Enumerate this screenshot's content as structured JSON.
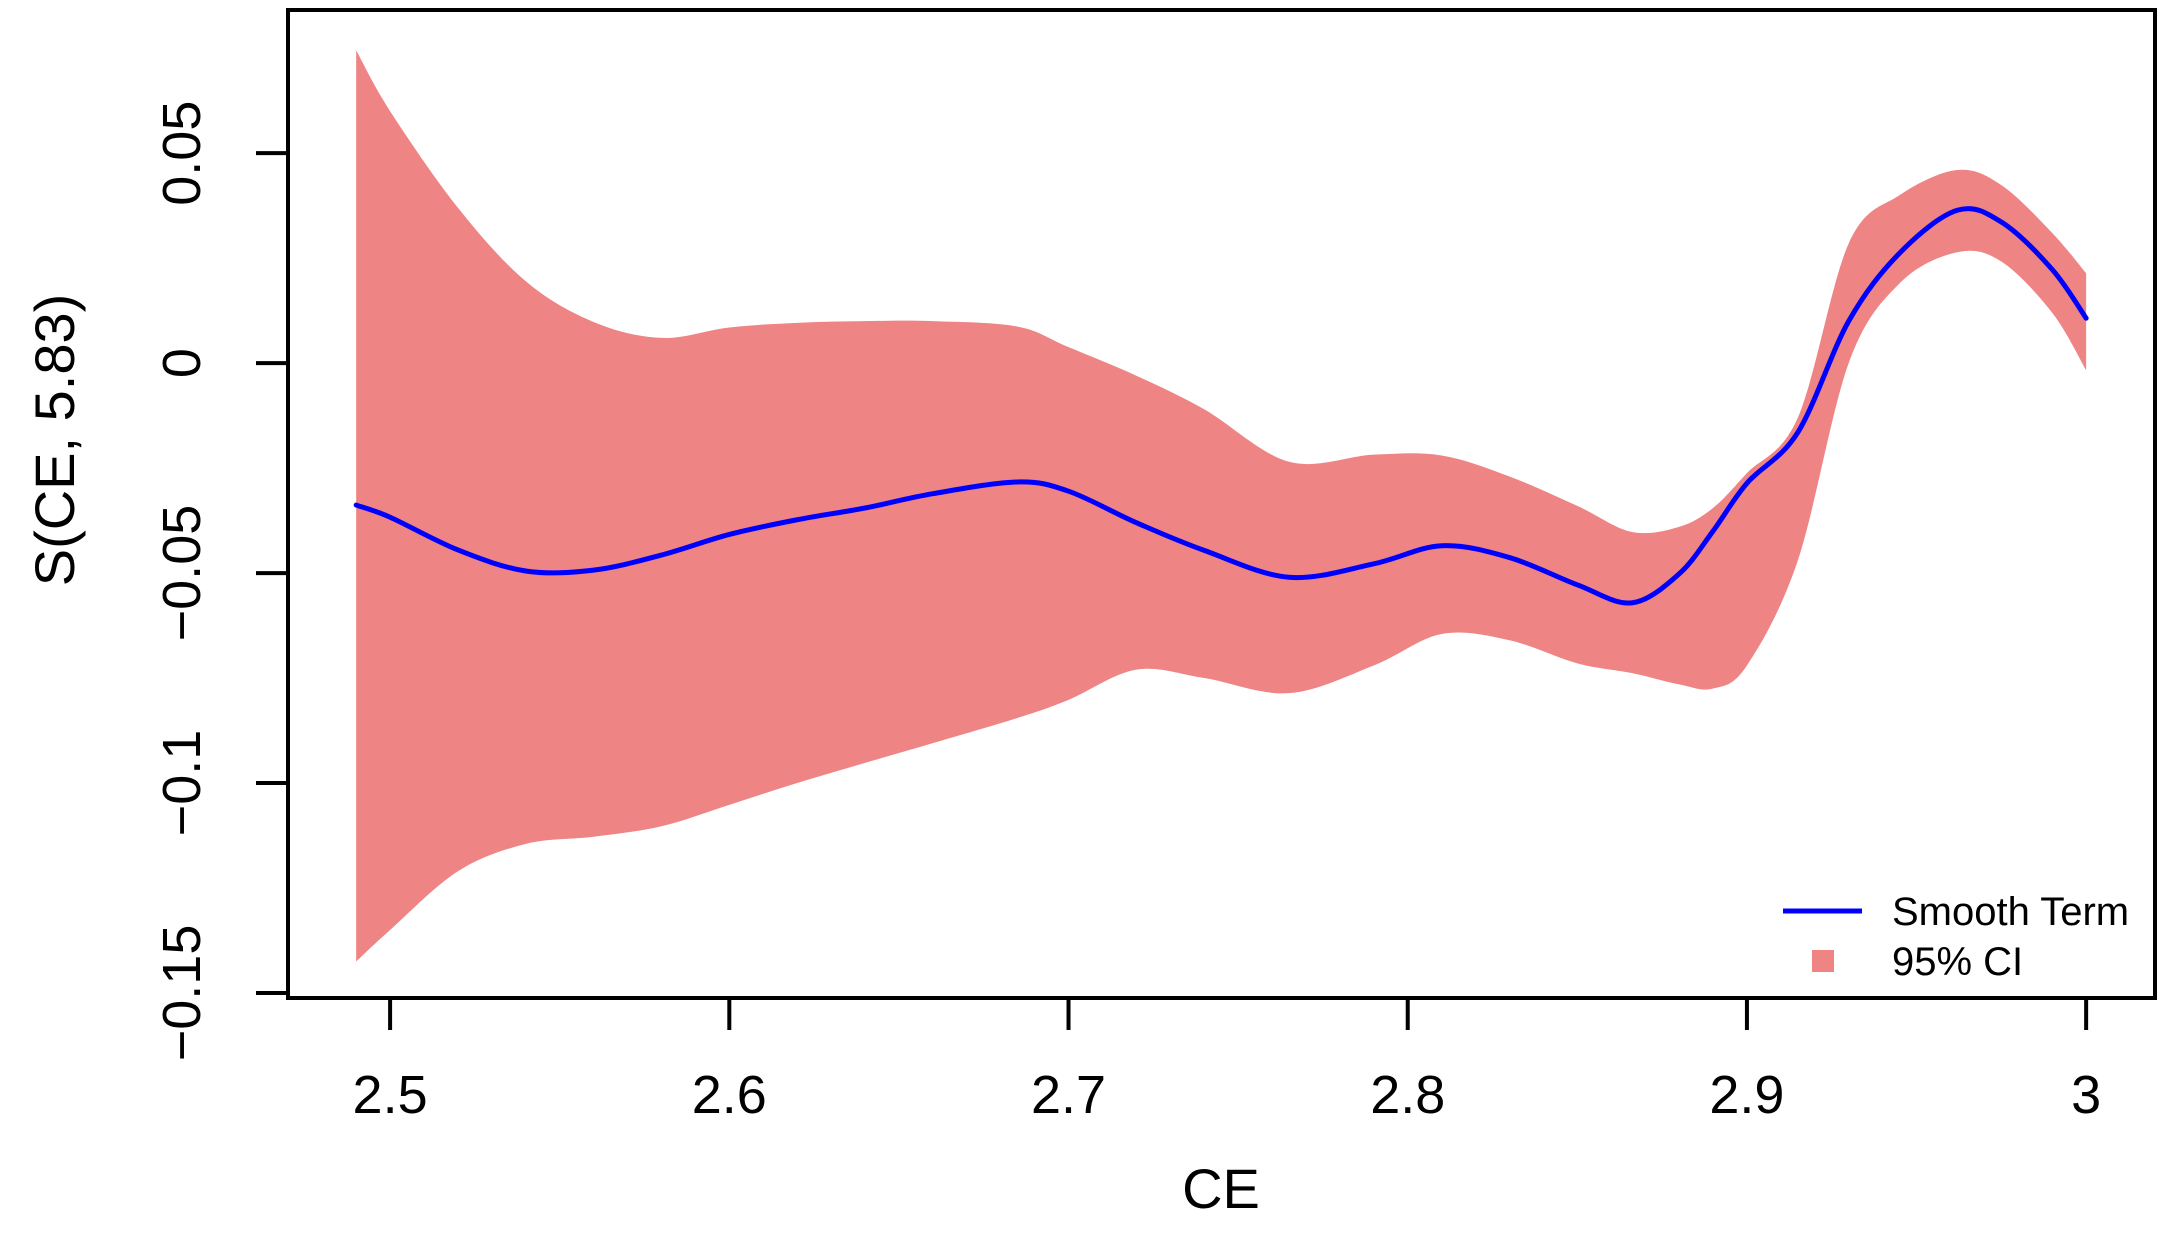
{
  "figure": {
    "background": "#ffffff",
    "border_color": "#000000"
  },
  "chart_data": {
    "type": "line",
    "title": "",
    "xlabel": "CE",
    "ylabel": "S(CE, 5.83)",
    "xlim": [
      2.4699,
      3.0203
    ],
    "ylim": [
      -0.1512,
      0.0841
    ],
    "grid": false,
    "x_ticks": [
      2.5,
      2.6,
      2.7,
      2.8,
      2.9,
      3.0
    ],
    "x_tick_labels": [
      "2.5",
      "2.6",
      "2.7",
      "2.8",
      "2.9",
      "3"
    ],
    "y_ticks": [
      0.05,
      0.0,
      -0.05,
      -0.1,
      -0.15
    ],
    "y_tick_labels": [
      "0.05",
      "0",
      "−0.05",
      "−0.1",
      "−0.15"
    ],
    "x": [
      2.49,
      2.5,
      2.52,
      2.54,
      2.56,
      2.58,
      2.6,
      2.62,
      2.64,
      2.66,
      2.685,
      2.7,
      2.72,
      2.74,
      2.765,
      2.79,
      2.81,
      2.83,
      2.85,
      2.866,
      2.88,
      2.89,
      2.9,
      2.915,
      2.93,
      2.945,
      2.962,
      2.975,
      2.99,
      3.0
    ],
    "series": [
      {
        "name": "Smooth Term",
        "type": "line",
        "color": "#0000ff",
        "values": [
          -0.0338,
          -0.0367,
          -0.0445,
          -0.0495,
          -0.0493,
          -0.0457,
          -0.0408,
          -0.0373,
          -0.0345,
          -0.0311,
          -0.0283,
          -0.0305,
          -0.038,
          -0.0446,
          -0.051,
          -0.0478,
          -0.0435,
          -0.0463,
          -0.0528,
          -0.0571,
          -0.0502,
          -0.04,
          -0.0286,
          -0.0165,
          0.01,
          0.0262,
          0.0364,
          0.0336,
          0.0223,
          0.0107
        ]
      },
      {
        "name": "95% CI",
        "type": "band",
        "color": "#ee8484",
        "upper": [
          0.0745,
          0.06,
          0.037,
          0.0195,
          0.0098,
          0.006,
          0.0085,
          0.0096,
          0.01,
          0.01,
          0.0087,
          0.0038,
          -0.003,
          -0.011,
          -0.0235,
          -0.0218,
          -0.022,
          -0.027,
          -0.034,
          -0.0402,
          -0.039,
          -0.0345,
          -0.0262,
          -0.013,
          0.0285,
          0.04,
          0.046,
          0.0424,
          0.031,
          0.0214
        ],
        "lower": [
          -0.1425,
          -0.135,
          -0.121,
          -0.1145,
          -0.1128,
          -0.1103,
          -0.1052,
          -0.1,
          -0.0952,
          -0.0905,
          -0.0845,
          -0.0802,
          -0.073,
          -0.075,
          -0.0786,
          -0.072,
          -0.0645,
          -0.066,
          -0.0715,
          -0.0738,
          -0.0765,
          -0.0775,
          -0.072,
          -0.047,
          0.0,
          0.019,
          0.0264,
          0.0242,
          0.012,
          -0.0017
        ]
      }
    ],
    "legend": {
      "position": "bottom-right",
      "entries": [
        {
          "label": "Smooth Term",
          "marker": "line",
          "color": "#0000ff"
        },
        {
          "label": "95% CI",
          "marker": "filled-square",
          "color": "#ee8484"
        }
      ]
    }
  }
}
